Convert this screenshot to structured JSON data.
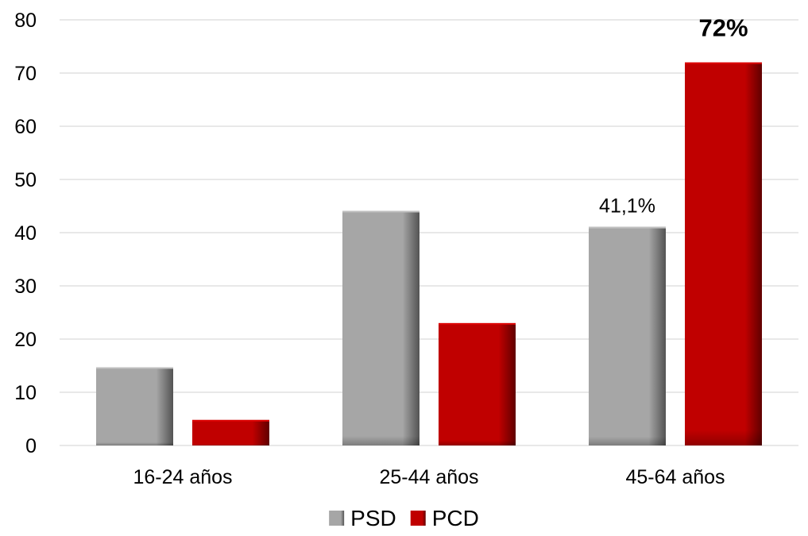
{
  "chart_data": {
    "type": "bar",
    "categories": [
      "16-24 años",
      "25-44 años",
      "45-64 años"
    ],
    "series": [
      {
        "name": "PSD",
        "values": [
          14.7,
          44.1,
          41.1
        ],
        "color": "#a6a6a6"
      },
      {
        "name": "PCD",
        "values": [
          4.8,
          23.0,
          72.0
        ],
        "color": "#c00000"
      }
    ],
    "ylim": [
      0,
      80
    ],
    "yticks": [
      0,
      10,
      20,
      30,
      40,
      50,
      60,
      70,
      80
    ],
    "grid": true,
    "legend_position": "bottom",
    "title": "",
    "xlabel": "",
    "ylabel": "",
    "data_labels": [
      {
        "series": 0,
        "category": 2,
        "text": "41,1%",
        "bold": false
      },
      {
        "series": 1,
        "category": 2,
        "text": "72%",
        "bold": true
      }
    ]
  }
}
